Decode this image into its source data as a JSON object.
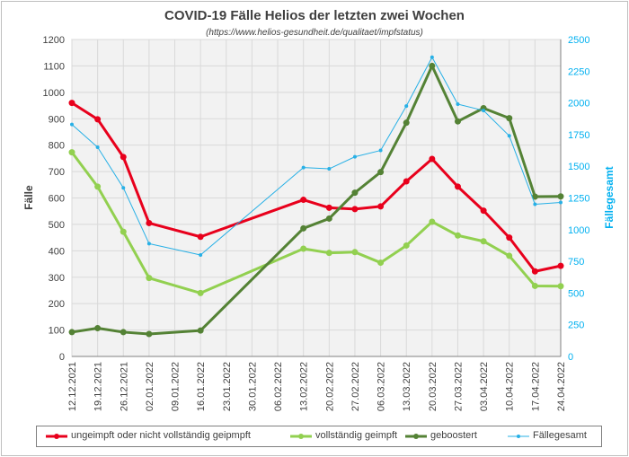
{
  "chart_data": {
    "type": "line",
    "title": "COVID-19 Fälle Helios der letzten zwei Wochen",
    "subtitle": "(https://www.helios-gesundheit.de/qualitaet/impfstatus)",
    "ylabel": "Fälle",
    "y2label": "Fällegesamt",
    "ylim": [
      0,
      1200
    ],
    "yticks": [
      0,
      100,
      200,
      300,
      400,
      500,
      600,
      700,
      800,
      900,
      1000,
      1100,
      1200
    ],
    "y2lim": [
      0,
      2500
    ],
    "y2ticks": [
      0,
      250,
      500,
      750,
      1000,
      1250,
      1500,
      1750,
      2000,
      2250,
      2500
    ],
    "categories": [
      "12.12.2021",
      "19.12.2021",
      "26.12.2021",
      "02.01.2022",
      "09.01.2022",
      "16.01.2022",
      "23.01.2022",
      "30.01.2022",
      "06.02.2022",
      "13.02.2022",
      "20.02.2022",
      "27.02.2022",
      "06.03.2022",
      "13.03.2022",
      "20.03.2022",
      "27.03.2022",
      "03.04.2022",
      "10.04.2022",
      "17.04.2022",
      "24.04.2022"
    ],
    "series": [
      {
        "name": "ungeimpft oder nicht vollständig geipmpft",
        "axis": "left",
        "color": "#e8001c",
        "values": [
          960,
          898,
          755,
          505,
          null,
          453,
          null,
          null,
          null,
          593,
          563,
          558,
          568,
          663,
          748,
          643,
          552,
          450,
          322,
          343
        ]
      },
      {
        "name": "vollständig geimpft",
        "axis": "left",
        "color": "#92d050",
        "values": [
          773,
          643,
          472,
          297,
          null,
          240,
          null,
          null,
          null,
          408,
          392,
          395,
          355,
          420,
          510,
          458,
          436,
          381,
          267,
          266
        ]
      },
      {
        "name": "geboostert",
        "axis": "left",
        "color": "#548235",
        "values": [
          92,
          107,
          92,
          85,
          null,
          98,
          null,
          null,
          null,
          485,
          522,
          620,
          698,
          885,
          1100,
          890,
          940,
          902,
          605,
          606
        ]
      },
      {
        "name": "Fällegesamt",
        "axis": "right",
        "color": "#27b0e6",
        "values": [
          1830,
          1650,
          1330,
          890,
          null,
          800,
          null,
          null,
          null,
          1490,
          1480,
          1575,
          1625,
          1975,
          2360,
          1990,
          1940,
          1740,
          1200,
          1215
        ]
      }
    ],
    "colors": {
      "left_axis": "#404040",
      "right_axis": "#00b0f0",
      "plot_bg": "#f2f2f2"
    }
  }
}
